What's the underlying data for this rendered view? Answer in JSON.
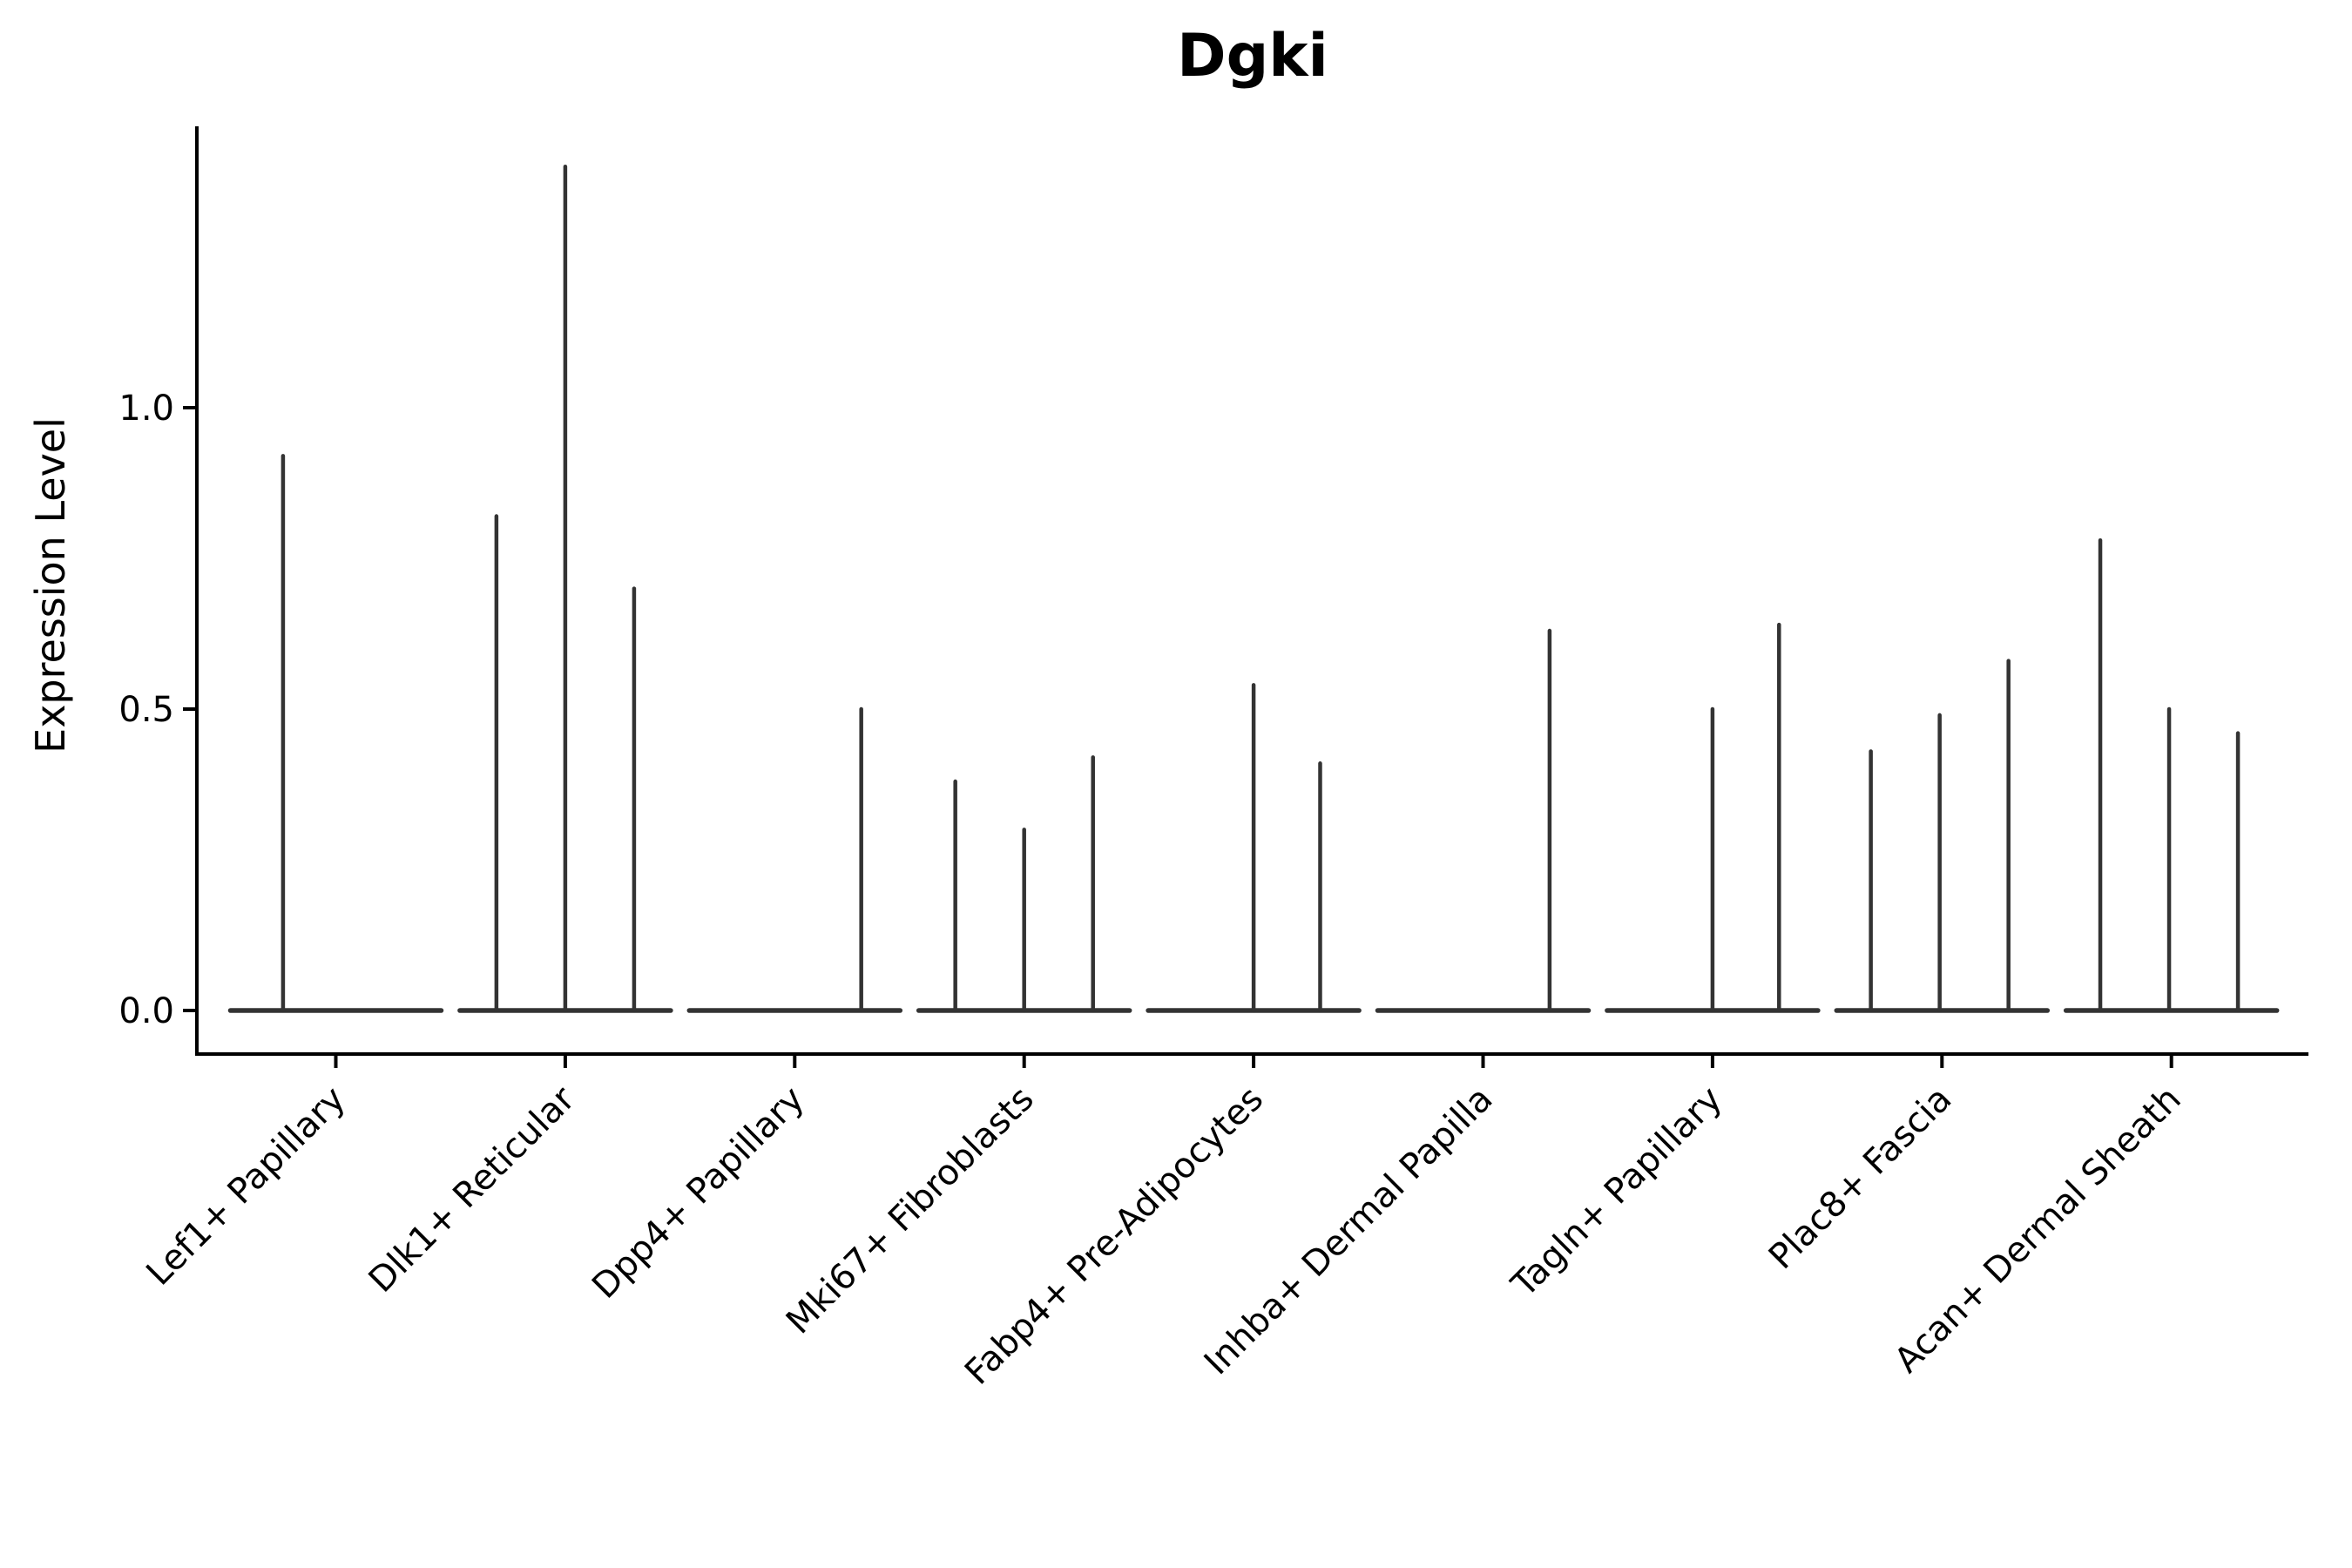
{
  "figure": {
    "background": "#ffffff"
  },
  "colors": {
    "violin": "#333333",
    "axis": "#000000",
    "text": "#000000",
    "background": "#ffffff"
  },
  "chart_data": {
    "type": "violin",
    "title": "Dgki",
    "xlabel": "",
    "ylabel": "Expression Level",
    "ylim": [
      0,
      1.47
    ],
    "grid": false,
    "legend": "none",
    "yticks": [
      {
        "value": 0.0,
        "label": "0.0"
      },
      {
        "value": 0.5,
        "label": "0.5"
      },
      {
        "value": 1.0,
        "label": "1.0"
      }
    ],
    "categories": [
      "Lef1+ Papillary",
      "Dlk1+ Reticular",
      "Dpp4+ Papillary",
      "Mki67+ Fibroblasts",
      "Fabp4+ Pre-Adipocytes",
      "Inhba+ Dermal Papilla",
      "Tagln+ Papillary",
      "Plac8+ Fascia",
      "Acan+ Dermal Sheath"
    ],
    "series": [
      {
        "category": "Lef1+ Papillary",
        "violins": [
          {
            "offset": -0.23,
            "peak": 0.92
          }
        ]
      },
      {
        "category": "Dlk1+ Reticular",
        "violins": [
          {
            "offset": -0.3,
            "peak": 0.82
          },
          {
            "offset": 0.0,
            "peak": 1.4
          },
          {
            "offset": 0.3,
            "peak": 0.7
          }
        ]
      },
      {
        "category": "Dpp4+ Papillary",
        "violins": [
          {
            "offset": 0.29,
            "peak": 0.5
          }
        ]
      },
      {
        "category": "Mki67+ Fibroblasts",
        "violins": [
          {
            "offset": -0.3,
            "peak": 0.38
          },
          {
            "offset": 0.0,
            "peak": 0.3
          },
          {
            "offset": 0.3,
            "peak": 0.42
          }
        ]
      },
      {
        "category": "Fabp4+ Pre-Adipocytes",
        "violins": [
          {
            "offset": 0.0,
            "peak": 0.54
          },
          {
            "offset": 0.29,
            "peak": 0.41
          }
        ]
      },
      {
        "category": "Inhba+ Dermal Papilla",
        "violins": [
          {
            "offset": 0.29,
            "peak": 0.63
          }
        ]
      },
      {
        "category": "Tagln+ Papillary",
        "violins": [
          {
            "offset": 0.0,
            "peak": 0.5
          },
          {
            "offset": 0.29,
            "peak": 0.64
          }
        ]
      },
      {
        "category": "Plac8+ Fascia",
        "violins": [
          {
            "offset": -0.31,
            "peak": 0.43
          },
          {
            "offset": -0.01,
            "peak": 0.49
          },
          {
            "offset": 0.29,
            "peak": 0.58
          }
        ]
      },
      {
        "category": "Acan+ Dermal Sheath",
        "violins": [
          {
            "offset": -0.31,
            "peak": 0.78
          },
          {
            "offset": -0.01,
            "peak": 0.5
          },
          {
            "offset": 0.29,
            "peak": 0.46
          }
        ]
      }
    ],
    "baseline_value": 0.0
  }
}
